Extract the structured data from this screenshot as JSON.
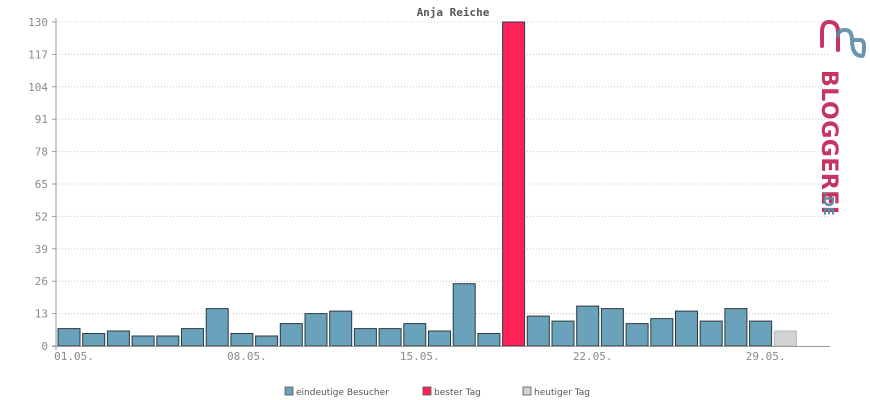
{
  "chart_data": {
    "type": "bar",
    "title": "Anja Reiche",
    "ylim": [
      0,
      130
    ],
    "yticks": [
      0,
      13,
      26,
      39,
      52,
      65,
      78,
      91,
      104,
      117,
      130
    ],
    "xtick_labels": [
      {
        "index": 0,
        "label": "01.05."
      },
      {
        "index": 7,
        "label": "08.05."
      },
      {
        "index": 14,
        "label": "15.05."
      },
      {
        "index": 21,
        "label": "22.05."
      },
      {
        "index": 28,
        "label": "29.05."
      }
    ],
    "grid": true,
    "legend_position": "bottom-center",
    "series": [
      {
        "name": "eindeutige Besucher",
        "color": "#6aa1bb",
        "values": [
          7,
          5,
          6,
          4,
          4,
          7,
          15,
          5,
          4,
          9,
          13,
          14,
          7,
          7,
          9,
          6,
          25,
          5,
          130,
          12,
          10,
          16,
          15,
          9,
          11,
          14,
          10,
          15,
          10,
          6
        ]
      }
    ],
    "highlight": {
      "best_index": 18,
      "today_index": 29,
      "best_color": "#ff2358",
      "today_color": "#d3d3d3"
    },
    "legend": [
      {
        "label": "eindeutige Besucher",
        "color": "#6aa1bb"
      },
      {
        "label": "bester Tag",
        "color": "#ff2358"
      },
      {
        "label": "heutiger Tag",
        "color": "#d3d3d3"
      }
    ]
  },
  "logo": {
    "text": "BLOGGEREI",
    "suffix": ".DE",
    "colors": {
      "primary": "#c5355f",
      "secondary": "#5a8aa8"
    }
  }
}
